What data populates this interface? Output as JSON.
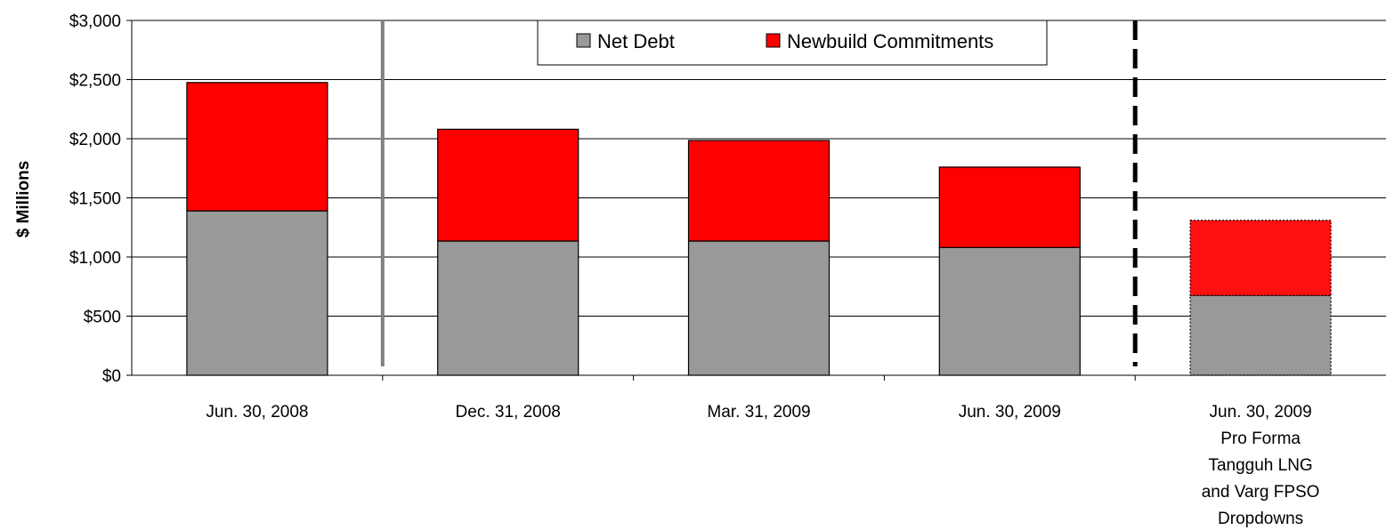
{
  "chart_data": {
    "type": "bar",
    "stacked": true,
    "title": "",
    "xlabel": "",
    "ylabel": "$ Millions",
    "ylim": [
      0,
      3000
    ],
    "yticks": [
      0,
      500,
      1000,
      1500,
      2000,
      2500,
      3000
    ],
    "ytick_labels": [
      "$0",
      "$500",
      "$1,000",
      "$1,500",
      "$2,000",
      "$2,500",
      "$3,000"
    ],
    "grid": "horizontal",
    "legend_position": "top-center",
    "categories": [
      "Jun. 30, 2008",
      "Dec. 31, 2008",
      "Mar. 31, 2009",
      "Jun. 30, 2009",
      "Jun. 30, 2009 Pro Forma Tangguh LNG and Varg FPSO Dropdowns"
    ],
    "category_lines": [
      [
        "Jun. 30, 2008"
      ],
      [
        "Dec. 31, 2008"
      ],
      [
        "Mar. 31, 2009"
      ],
      [
        "Jun. 30, 2009"
      ],
      [
        "Jun. 30, 2009",
        "Pro Forma",
        "Tangguh LNG",
        "and Varg FPSO",
        "Dropdowns"
      ]
    ],
    "series": [
      {
        "name": "Net Debt",
        "color": "#999999",
        "values": [
          1390,
          1135,
          1135,
          1080,
          675
        ]
      },
      {
        "name": "Newbuild Commitments",
        "color": "#ff0000",
        "values": [
          1085,
          945,
          850,
          680,
          635
        ]
      }
    ],
    "pro_forma_color_net_debt": "#999999",
    "pro_forma_color_newbuild": "#ff1010",
    "separators": [
      {
        "after_category": 0,
        "style": "solid",
        "color": "#808080"
      },
      {
        "after_category": 3,
        "style": "dashed",
        "color": "#000000"
      }
    ]
  }
}
